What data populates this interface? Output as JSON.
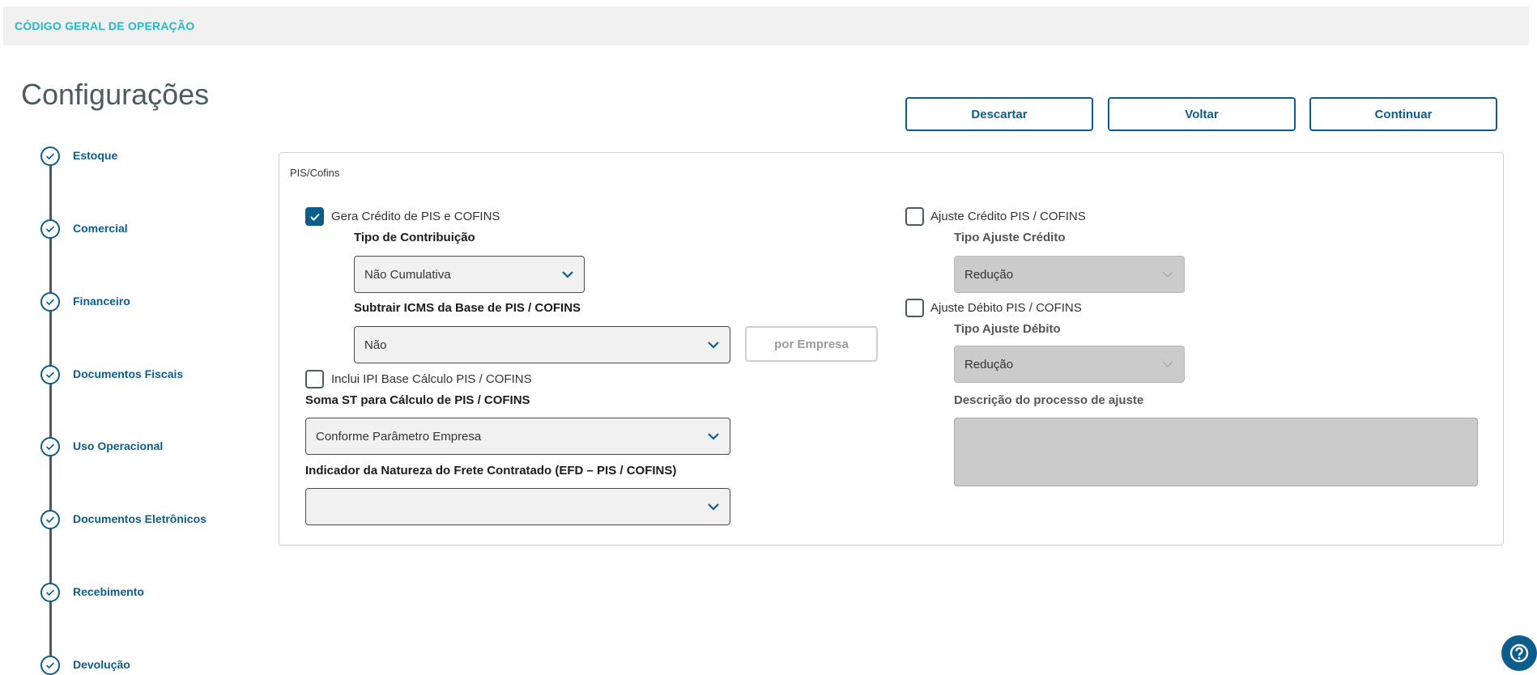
{
  "header": {
    "title": "CÓDIGO GERAL DE OPERAÇÃO"
  },
  "page": {
    "title": "Configurações"
  },
  "actions": {
    "discard": "Descartar",
    "back": "Voltar",
    "continue": "Continuar"
  },
  "steps": [
    {
      "label": "Estoque",
      "done": true
    },
    {
      "label": "Comercial",
      "done": true
    },
    {
      "label": "Financeiro",
      "done": true
    },
    {
      "label": "Documentos Fiscais",
      "done": true
    },
    {
      "label": "Uso Operacional",
      "done": true
    },
    {
      "label": "Documentos Eletrônicos",
      "done": true
    },
    {
      "label": "Recebimento",
      "done": true
    },
    {
      "label": "Devolução",
      "done": true
    }
  ],
  "panel": {
    "title": "PIS/Cofins",
    "gera_credito": {
      "label": "Gera Crédito de PIS e COFINS",
      "checked": true
    },
    "tipo_contribuicao": {
      "label": "Tipo de Contribuição",
      "value": "Não Cumulativa"
    },
    "subtrair_icms": {
      "label": "Subtrair ICMS da Base de PIS / COFINS",
      "value": "Não",
      "button": "por Empresa"
    },
    "inclui_ipi": {
      "label": "Inclui IPI Base Cálculo PIS / COFINS",
      "checked": false
    },
    "soma_st": {
      "label": "Soma ST para Cálculo de PIS / COFINS",
      "value": "Conforme Parâmetro Empresa"
    },
    "indicador_frete": {
      "label": "Indicador da Natureza do Frete Contratado (EFD – PIS / COFINS)",
      "value": ""
    },
    "ajuste_credito": {
      "label": "Ajuste Crédito PIS / COFINS",
      "checked": false
    },
    "tipo_ajuste_credito": {
      "label": "Tipo Ajuste Crédito",
      "value": "Redução"
    },
    "ajuste_debito": {
      "label": "Ajuste Débito PIS / COFINS",
      "checked": false
    },
    "tipo_ajuste_debito": {
      "label": "Tipo Ajuste Débito",
      "value": "Redução"
    },
    "descricao": {
      "label": "Descrição do processo de ajuste",
      "value": ""
    }
  },
  "colors": {
    "primary": "#0c5d8c",
    "header_text": "#29b6c5"
  }
}
